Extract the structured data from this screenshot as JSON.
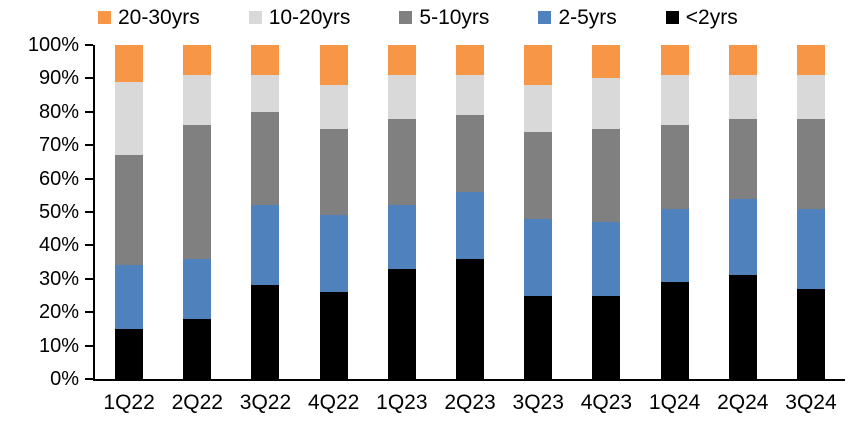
{
  "chart_data": {
    "type": "bar",
    "subtype": "100%-stacked-column",
    "title": "",
    "xlabel": "",
    "ylabel": "",
    "grid": false,
    "categories": [
      "1Q22",
      "2Q22",
      "3Q22",
      "4Q22",
      "1Q23",
      "2Q23",
      "3Q23",
      "4Q23",
      "1Q24",
      "2Q24",
      "3Q24"
    ],
    "series": [
      {
        "id": "lt2yrs",
        "name": "<2yrs",
        "color": "#000000",
        "values": [
          15,
          18,
          28,
          26,
          33,
          36,
          25,
          25,
          29,
          31,
          27
        ]
      },
      {
        "id": "2-5yrs",
        "name": "2-5yrs",
        "color": "#4F81BD",
        "values": [
          19,
          18,
          24,
          23,
          19,
          20,
          23,
          22,
          22,
          23,
          24
        ]
      },
      {
        "id": "5-10yrs",
        "name": "5-10yrs",
        "color": "#808080",
        "values": [
          33,
          40,
          28,
          26,
          26,
          23,
          26,
          28,
          25,
          24,
          27
        ]
      },
      {
        "id": "10-20yrs",
        "name": "10-20yrs",
        "color": "#D9D9D9",
        "values": [
          22,
          15,
          11,
          13,
          13,
          12,
          14,
          15,
          15,
          13,
          13
        ]
      },
      {
        "id": "20-30yrs",
        "name": "20-30yrs",
        "color": "#F79646",
        "values": [
          11,
          9,
          9,
          12,
          9,
          9,
          12,
          10,
          9,
          9,
          9
        ]
      }
    ],
    "stack_order_bottom_to_top": [
      "<2yrs",
      "2-5yrs",
      "5-10yrs",
      "10-20yrs",
      "20-30yrs"
    ],
    "legend": {
      "position": "top",
      "order": [
        "20-30yrs",
        "10-20yrs",
        "5-10yrs",
        "2-5yrs",
        "<2yrs"
      ]
    },
    "yaxis": {
      "min": 0,
      "max": 100,
      "step": 10,
      "tick_labels": [
        "0%",
        "10%",
        "20%",
        "30%",
        "40%",
        "50%",
        "60%",
        "70%",
        "80%",
        "90%",
        "100%"
      ]
    }
  }
}
